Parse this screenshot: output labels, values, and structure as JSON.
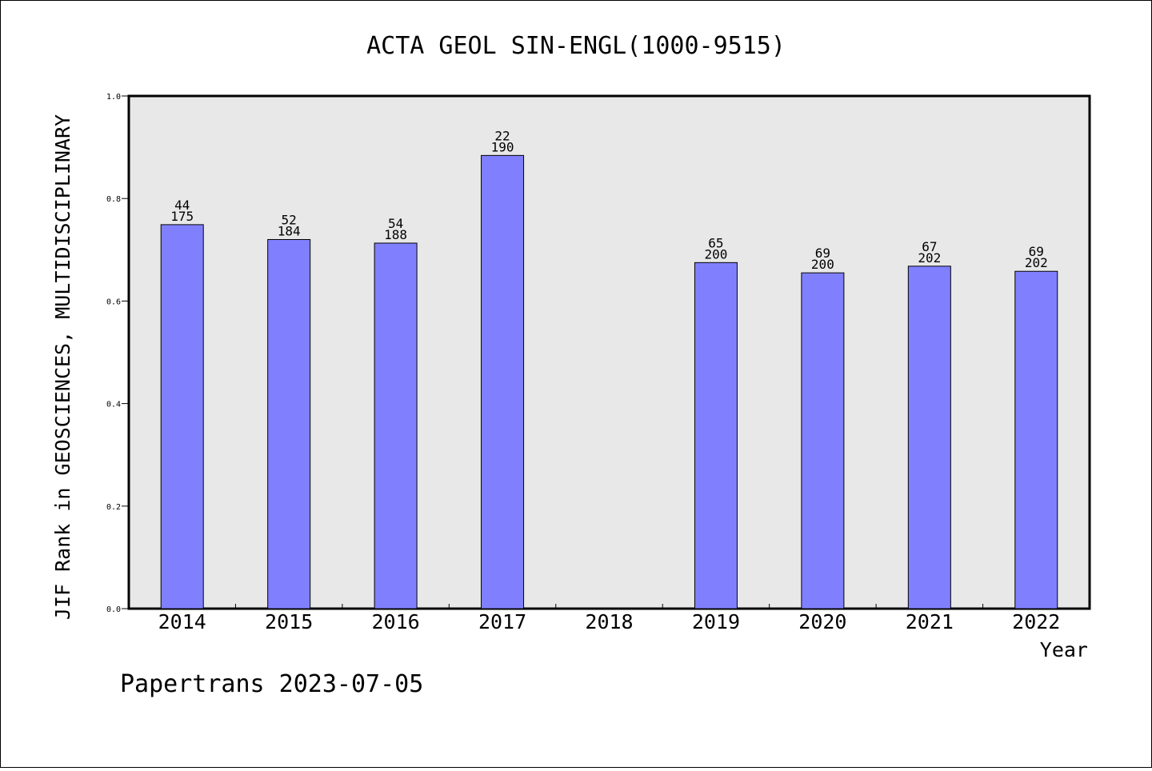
{
  "chart_data": {
    "type": "bar",
    "title": "ACTA GEOL SIN-ENGL(1000-9515)",
    "xlabel": "Year",
    "ylabel": "JIF Rank in GEOSCIENCES, MULTIDISCIPLINARY",
    "ylim": [
      0,
      1.0
    ],
    "yticks": [
      "0.0",
      "0.2",
      "0.4",
      "0.6",
      "0.8",
      "1.0"
    ],
    "grid": false,
    "categories": [
      "2014",
      "2015",
      "2016",
      "2017",
      "2018",
      "2019",
      "2020",
      "2021",
      "2022"
    ],
    "values": [
      0.749,
      0.72,
      0.713,
      0.884,
      null,
      0.675,
      0.655,
      0.668,
      0.658
    ],
    "rank": [
      "44",
      "52",
      "54",
      "22",
      "",
      "65",
      "69",
      "67",
      "69"
    ],
    "total": [
      "175",
      "184",
      "188",
      "190",
      "",
      "200",
      "200",
      "202",
      "202"
    ],
    "bar_color": "#8080ff",
    "plot_background": "#e8e8e8"
  },
  "footer": "Papertrans 2023-07-05"
}
